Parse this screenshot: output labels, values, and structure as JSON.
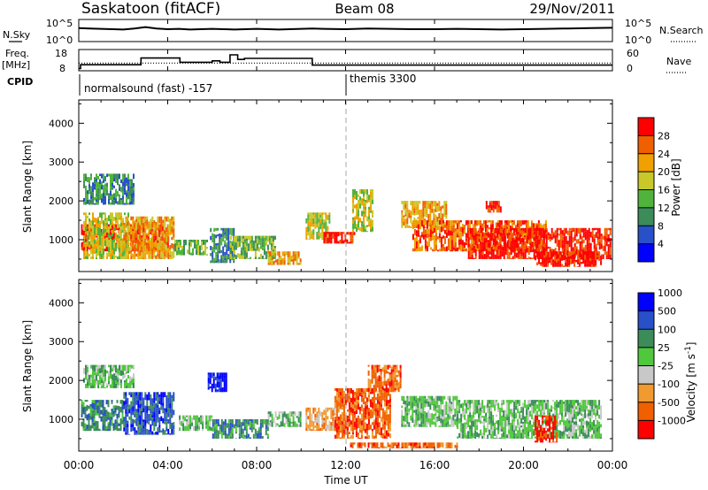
{
  "header": {
    "station": "Saskatoon (fitACF)",
    "beam": "Beam 08",
    "date": "29/Nov/2011"
  },
  "nsky_panel": {
    "left_label": "N.Sky",
    "left_ticks": [
      "10^5",
      "10^0"
    ],
    "right_ticks": [
      "10^5",
      "10^0"
    ],
    "right_label": "N.Search"
  },
  "freq_panel": {
    "left_label_1": "Freq.",
    "left_label_2": "[MHz]",
    "left_ticks": [
      "18",
      "8"
    ],
    "right_ticks": [
      "60",
      "0"
    ],
    "right_label": "Nave"
  },
  "cpid": {
    "label": "CPID",
    "mode_1": "normalsound (fast) -157",
    "mode_2": "themis 3300"
  },
  "x_axis": {
    "ticks": [
      "00:00",
      "04:00",
      "08:00",
      "12:00",
      "16:00",
      "20:00",
      "00:00"
    ],
    "label": "Time UT"
  },
  "colors": {
    "power_scale": [
      "#0000ff",
      "#2850c8",
      "#3c8c5a",
      "#50b43c",
      "#c8c828",
      "#f0a000",
      "#f06000",
      "#ff0000"
    ],
    "velocity_scale": [
      "#ff0000",
      "#f06000",
      "#f09a30",
      "#c8c8c8",
      "#50c83c",
      "#3c8c5a",
      "#2850c8",
      "#0000ff"
    ]
  },
  "chart_data": [
    {
      "type": "line",
      "panel": "nsky",
      "x_unit": "hours UT",
      "ylim_left": [
        "10^0",
        "10^5"
      ],
      "series": [
        {
          "name": "N.Sky",
          "x": [
            0,
            0.5,
            1,
            1.5,
            2,
            2.5,
            3,
            3.5,
            4,
            4.5,
            5,
            5.5,
            6,
            6.5,
            7,
            7.5,
            8,
            8.5,
            9,
            9.5,
            10,
            10.5,
            11,
            12,
            13,
            14,
            15,
            16,
            17,
            18,
            19,
            20,
            21,
            22,
            23,
            24
          ],
          "y": [
            3.3,
            3.2,
            3.1,
            3.0,
            2.9,
            3.2,
            3.6,
            3.2,
            3.0,
            3.1,
            2.9,
            3.0,
            3.1,
            3.0,
            2.9,
            3.0,
            3.1,
            3.0,
            2.9,
            3.0,
            3.1,
            3.2,
            3.1,
            3.0,
            3.2,
            3.1,
            3.0,
            3.0,
            3.1,
            3.0,
            2.9,
            3.0,
            3.1,
            3.2,
            3.3,
            3.4
          ]
        }
      ]
    },
    {
      "type": "line",
      "panel": "freq",
      "x_unit": "hours UT",
      "ylim_left": [
        8,
        18
      ],
      "ylim_right": [
        0,
        60
      ],
      "series": [
        {
          "name": "Freq.",
          "x": [
            0,
            0.08,
            0.08,
            2.8,
            2.8,
            4.55,
            4.55,
            6.0,
            6.0,
            6.35,
            6.35,
            6.8,
            6.8,
            7.15,
            7.15,
            7.45,
            7.45,
            10.5,
            10.5,
            24
          ],
          "y": [
            8.3,
            8.3,
            10.4,
            10.4,
            14.2,
            14.2,
            11.8,
            11.8,
            12.6,
            12.6,
            11.8,
            11.8,
            16.0,
            16.0,
            13.4,
            13.4,
            14.0,
            14.0,
            10.2,
            10.2
          ]
        },
        {
          "name": "Nave",
          "x": [
            0,
            24
          ],
          "y": [
            20,
            20
          ]
        }
      ]
    },
    {
      "type": "heatmap",
      "panel": "power",
      "ylabel": "Slant Range [km]",
      "yticks": [
        1000,
        2000,
        3000,
        4000
      ],
      "ylim": [
        180,
        4600
      ],
      "xlim": [
        0,
        24
      ],
      "colorbar": {
        "label": "Power [dB]",
        "ticks": [
          4,
          8,
          12,
          16,
          20,
          24,
          28
        ]
      },
      "regions": [
        {
          "x": [
            0.1,
            1.8
          ],
          "y": [
            700,
            1400
          ],
          "level": 28
        },
        {
          "x": [
            0.2,
            2.2
          ],
          "y": [
            500,
            1700
          ],
          "level": 16
        },
        {
          "x": [
            0.2,
            2.5
          ],
          "y": [
            1900,
            2700
          ],
          "level": 8
        },
        {
          "x": [
            2.3,
            4.0
          ],
          "y": [
            700,
            1400
          ],
          "level": 28
        },
        {
          "x": [
            2.0,
            4.3
          ],
          "y": [
            500,
            1600
          ],
          "level": 18
        },
        {
          "x": [
            4.3,
            5.8
          ],
          "y": [
            600,
            1000
          ],
          "level": 12
        },
        {
          "x": [
            5.9,
            7.0
          ],
          "y": [
            400,
            1300
          ],
          "level": 8
        },
        {
          "x": [
            6.8,
            8.8
          ],
          "y": [
            500,
            1100
          ],
          "level": 12
        },
        {
          "x": [
            8.5,
            10.0
          ],
          "y": [
            350,
            700
          ],
          "level": 20
        },
        {
          "x": [
            10.2,
            11.3
          ],
          "y": [
            1000,
            1700
          ],
          "level": 16
        },
        {
          "x": [
            11.0,
            12.4
          ],
          "y": [
            900,
            1200
          ],
          "level": 26
        },
        {
          "x": [
            12.3,
            13.2
          ],
          "y": [
            1200,
            2300
          ],
          "level": 16
        },
        {
          "x": [
            14.5,
            16.5
          ],
          "y": [
            1300,
            2000
          ],
          "level": 20
        },
        {
          "x": [
            15.0,
            21.0
          ],
          "y": [
            700,
            1500
          ],
          "level": 24
        },
        {
          "x": [
            17.5,
            23.9
          ],
          "y": [
            500,
            1300
          ],
          "level": 28
        },
        {
          "x": [
            18.3,
            19.0
          ],
          "y": [
            1700,
            2000
          ],
          "level": 28
        },
        {
          "x": [
            20.5,
            23.5
          ],
          "y": [
            300,
            700
          ],
          "level": 28
        }
      ]
    },
    {
      "type": "heatmap",
      "panel": "velocity",
      "ylabel": "Slant Range [km]",
      "yticks": [
        1000,
        2000,
        3000,
        4000
      ],
      "ylim": [
        180,
        4600
      ],
      "xlim": [
        0,
        24
      ],
      "colorbar": {
        "label": "Velocity [m s^-1]",
        "ticks": [
          1000,
          500,
          100,
          25,
          -25,
          -100,
          -500,
          -1000
        ]
      },
      "regions": [
        {
          "x": [
            0.1,
            2.0
          ],
          "y": [
            700,
            1500
          ],
          "level": 100
        },
        {
          "x": [
            0.2,
            2.5
          ],
          "y": [
            1800,
            2400
          ],
          "level": 0
        },
        {
          "x": [
            2.0,
            4.3
          ],
          "y": [
            600,
            1700
          ],
          "level": 500
        },
        {
          "x": [
            4.5,
            6.0
          ],
          "y": [
            700,
            1100
          ],
          "level": 0
        },
        {
          "x": [
            5.8,
            6.6
          ],
          "y": [
            1700,
            2200
          ],
          "level": 800
        },
        {
          "x": [
            6.0,
            8.5
          ],
          "y": [
            500,
            1000
          ],
          "level": 100
        },
        {
          "x": [
            8.5,
            10.0
          ],
          "y": [
            800,
            1200
          ],
          "level": 0
        },
        {
          "x": [
            10.2,
            11.5
          ],
          "y": [
            700,
            1300
          ],
          "level": -300
        },
        {
          "x": [
            11.5,
            14.0
          ],
          "y": [
            500,
            1800
          ],
          "level": -500
        },
        {
          "x": [
            13.0,
            14.5
          ],
          "y": [
            1700,
            2400
          ],
          "level": -500
        },
        {
          "x": [
            14.5,
            17.0
          ],
          "y": [
            800,
            1600
          ],
          "level": 0
        },
        {
          "x": [
            17.0,
            23.5
          ],
          "y": [
            500,
            1500
          ],
          "level": 0
        },
        {
          "x": [
            12.2,
            17.0
          ],
          "y": [
            250,
            400
          ],
          "level": -500
        },
        {
          "x": [
            20.5,
            21.5
          ],
          "y": [
            400,
            1100
          ],
          "level": -1000
        }
      ]
    }
  ]
}
